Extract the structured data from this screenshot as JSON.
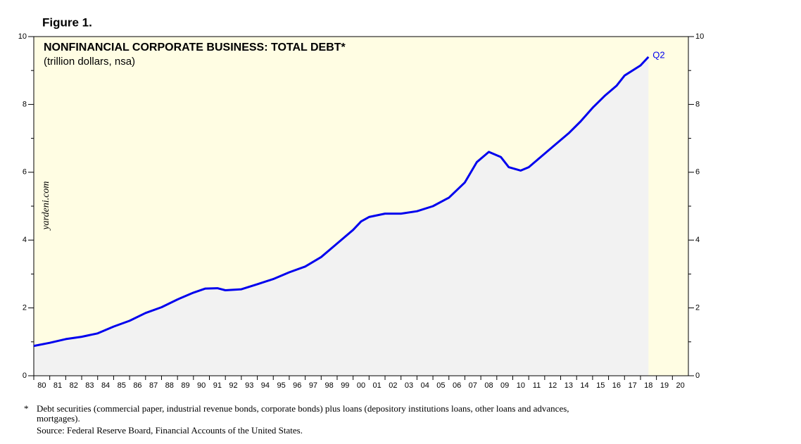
{
  "chart_data": {
    "type": "line",
    "figure_label": "Figure 1.",
    "title": "NONFINANCIAL CORPORATE BUSINESS: TOTAL DEBT*",
    "subtitle": "(trillion dollars, nsa)",
    "watermark": "yardeni.com",
    "annotation": "Q2",
    "footnote_marker": "*",
    "footnote_lines": [
      "Debt securities (commercial paper, industrial revenue bonds, corporate bonds) plus loans (depository institutions loans, other loans and advances,",
      "mortgages)."
    ],
    "source": "Source: Federal Reserve Board, Financial Accounts of the United States.",
    "background": "#fffde3",
    "area_color": "#f2f2f2",
    "x": [
      1980,
      1981,
      1982,
      1983,
      1984,
      1985,
      1986,
      1987,
      1988,
      1989,
      1990,
      1990.75,
      1991.5,
      1992,
      1993,
      1994,
      1995,
      1996,
      1997,
      1998,
      1999,
      2000,
      2000.5,
      2001,
      2002,
      2003,
      2004,
      2005,
      2006,
      2007,
      2007.75,
      2008.5,
      2009.25,
      2009.75,
      2010.5,
      2011,
      2011.75,
      2012.5,
      2013.5,
      2014.25,
      2015,
      2015.75,
      2016.5,
      2017,
      2018,
      2018.5
    ],
    "series": [
      {
        "name": "Total debt",
        "color": "#0000ee",
        "values": [
          0.88,
          0.97,
          1.08,
          1.15,
          1.25,
          1.45,
          1.62,
          1.85,
          2.02,
          2.25,
          2.45,
          2.57,
          2.58,
          2.52,
          2.55,
          2.7,
          2.85,
          3.05,
          3.22,
          3.5,
          3.9,
          4.3,
          4.55,
          4.68,
          4.78,
          4.78,
          4.85,
          5.0,
          5.25,
          5.7,
          6.3,
          6.6,
          6.45,
          6.15,
          6.05,
          6.15,
          6.45,
          6.75,
          7.15,
          7.5,
          7.9,
          8.25,
          8.55,
          8.85,
          9.15,
          9.4
        ]
      }
    ],
    "xlim": [
      1980,
      2021
    ],
    "xticks": [
      {
        "value": 1980,
        "label": "80"
      },
      {
        "value": 1981,
        "label": "81"
      },
      {
        "value": 1982,
        "label": "82"
      },
      {
        "value": 1983,
        "label": "83"
      },
      {
        "value": 1984,
        "label": "84"
      },
      {
        "value": 1985,
        "label": "85"
      },
      {
        "value": 1986,
        "label": "86"
      },
      {
        "value": 1987,
        "label": "87"
      },
      {
        "value": 1988,
        "label": "88"
      },
      {
        "value": 1989,
        "label": "89"
      },
      {
        "value": 1990,
        "label": "90"
      },
      {
        "value": 1991,
        "label": "91"
      },
      {
        "value": 1992,
        "label": "92"
      },
      {
        "value": 1993,
        "label": "93"
      },
      {
        "value": 1994,
        "label": "94"
      },
      {
        "value": 1995,
        "label": "95"
      },
      {
        "value": 1996,
        "label": "96"
      },
      {
        "value": 1997,
        "label": "97"
      },
      {
        "value": 1998,
        "label": "98"
      },
      {
        "value": 1999,
        "label": "99"
      },
      {
        "value": 2000,
        "label": "00"
      },
      {
        "value": 2001,
        "label": "01"
      },
      {
        "value": 2002,
        "label": "02"
      },
      {
        "value": 2003,
        "label": "03"
      },
      {
        "value": 2004,
        "label": "04"
      },
      {
        "value": 2005,
        "label": "05"
      },
      {
        "value": 2006,
        "label": "06"
      },
      {
        "value": 2007,
        "label": "07"
      },
      {
        "value": 2008,
        "label": "08"
      },
      {
        "value": 2009,
        "label": "09"
      },
      {
        "value": 2010,
        "label": "10"
      },
      {
        "value": 2011,
        "label": "11"
      },
      {
        "value": 2012,
        "label": "12"
      },
      {
        "value": 2013,
        "label": "13"
      },
      {
        "value": 2014,
        "label": "14"
      },
      {
        "value": 2015,
        "label": "15"
      },
      {
        "value": 2016,
        "label": "16"
      },
      {
        "value": 2017,
        "label": "17"
      },
      {
        "value": 2018,
        "label": "18"
      },
      {
        "value": 2019,
        "label": "19"
      },
      {
        "value": 2020,
        "label": "20"
      }
    ],
    "ylim": [
      0,
      10
    ],
    "yticks": [
      0,
      2,
      4,
      6,
      8,
      10
    ],
    "y_minor_ticks": [
      1,
      3,
      5,
      7,
      9
    ]
  }
}
